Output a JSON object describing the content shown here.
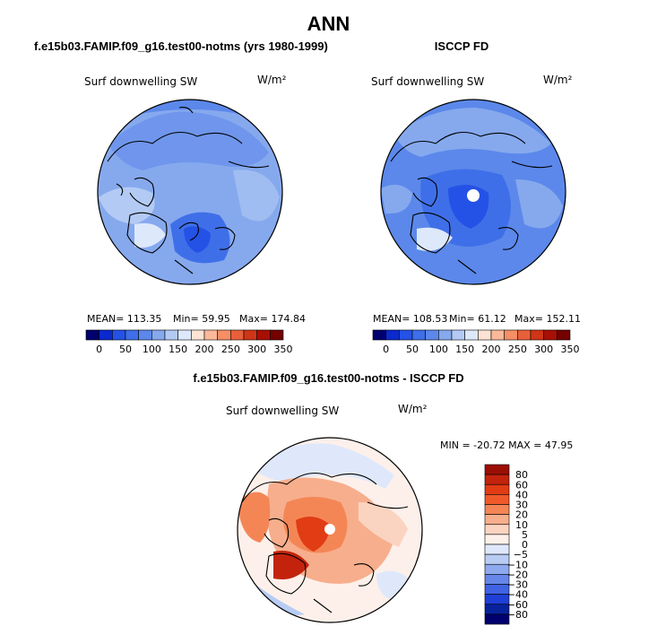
{
  "title": "ANN",
  "chart_data": [
    {
      "type": "map",
      "title": "f.e15b03.FAMIP.f09_g16.test00-notms (yrs 1980-1999)",
      "variable": "Surf downwelling SW",
      "units": "W/m²",
      "stats": {
        "mean_label": "MEAN= 113.35",
        "min_label": "Min=   59.95",
        "max_label": "Max= 174.84"
      },
      "colorbar_ticks": [
        "0",
        "50",
        "100",
        "150",
        "200",
        "250",
        "300",
        "350"
      ],
      "colorbar_colors": [
        "#00006e",
        "#0a2acd",
        "#2552e6",
        "#3f6fe8",
        "#5b88ea",
        "#86a9ee",
        "#b3cbf4",
        "#dde8fb",
        "#fde3d4",
        "#fbb99a",
        "#f68e66",
        "#e8603a",
        "#cf3517",
        "#a81006",
        "#740000"
      ]
    },
    {
      "type": "map",
      "title": "ISCCP FD",
      "variable": "Surf downwelling SW",
      "units": "W/m²",
      "stats": {
        "mean_label": "MEAN= 108.53",
        "min_label": "Min=   61.12",
        "max_label": "Max= 152.11"
      },
      "colorbar_ticks": [
        "0",
        "50",
        "100",
        "150",
        "200",
        "250",
        "300",
        "350"
      ],
      "colorbar_colors": [
        "#00006e",
        "#0a2acd",
        "#2552e6",
        "#3f6fe8",
        "#5b88ea",
        "#86a9ee",
        "#b3cbf4",
        "#dde8fb",
        "#fde3d4",
        "#fbb99a",
        "#f68e66",
        "#e8603a",
        "#cf3517",
        "#a81006",
        "#740000"
      ]
    },
    {
      "type": "map",
      "title": "f.e15b03.FAMIP.f09_g16.test00-notms - ISCCP FD",
      "variable": "Surf downwelling SW",
      "units": "W/m²",
      "stats": {
        "minmax_label": "MIN = -20.72 MAX =  47.95"
      },
      "colorbar_ticks": [
        "80",
        "60",
        "40",
        "30",
        "20",
        "10",
        "5",
        "0",
        "−5",
        "−10",
        "−20",
        "−30",
        "−40",
        "−60",
        "−80"
      ],
      "colorbar_colors": [
        "#9b0f05",
        "#c3230c",
        "#e13c14",
        "#f05a2b",
        "#f48656",
        "#f7ae8c",
        "#fad4c0",
        "#fdf0ea",
        "#dfe8fb",
        "#b8ccf4",
        "#8ea9ed",
        "#6787e8",
        "#3f63e2",
        "#1f3fd6",
        "#08229c",
        "#00006e"
      ]
    }
  ]
}
